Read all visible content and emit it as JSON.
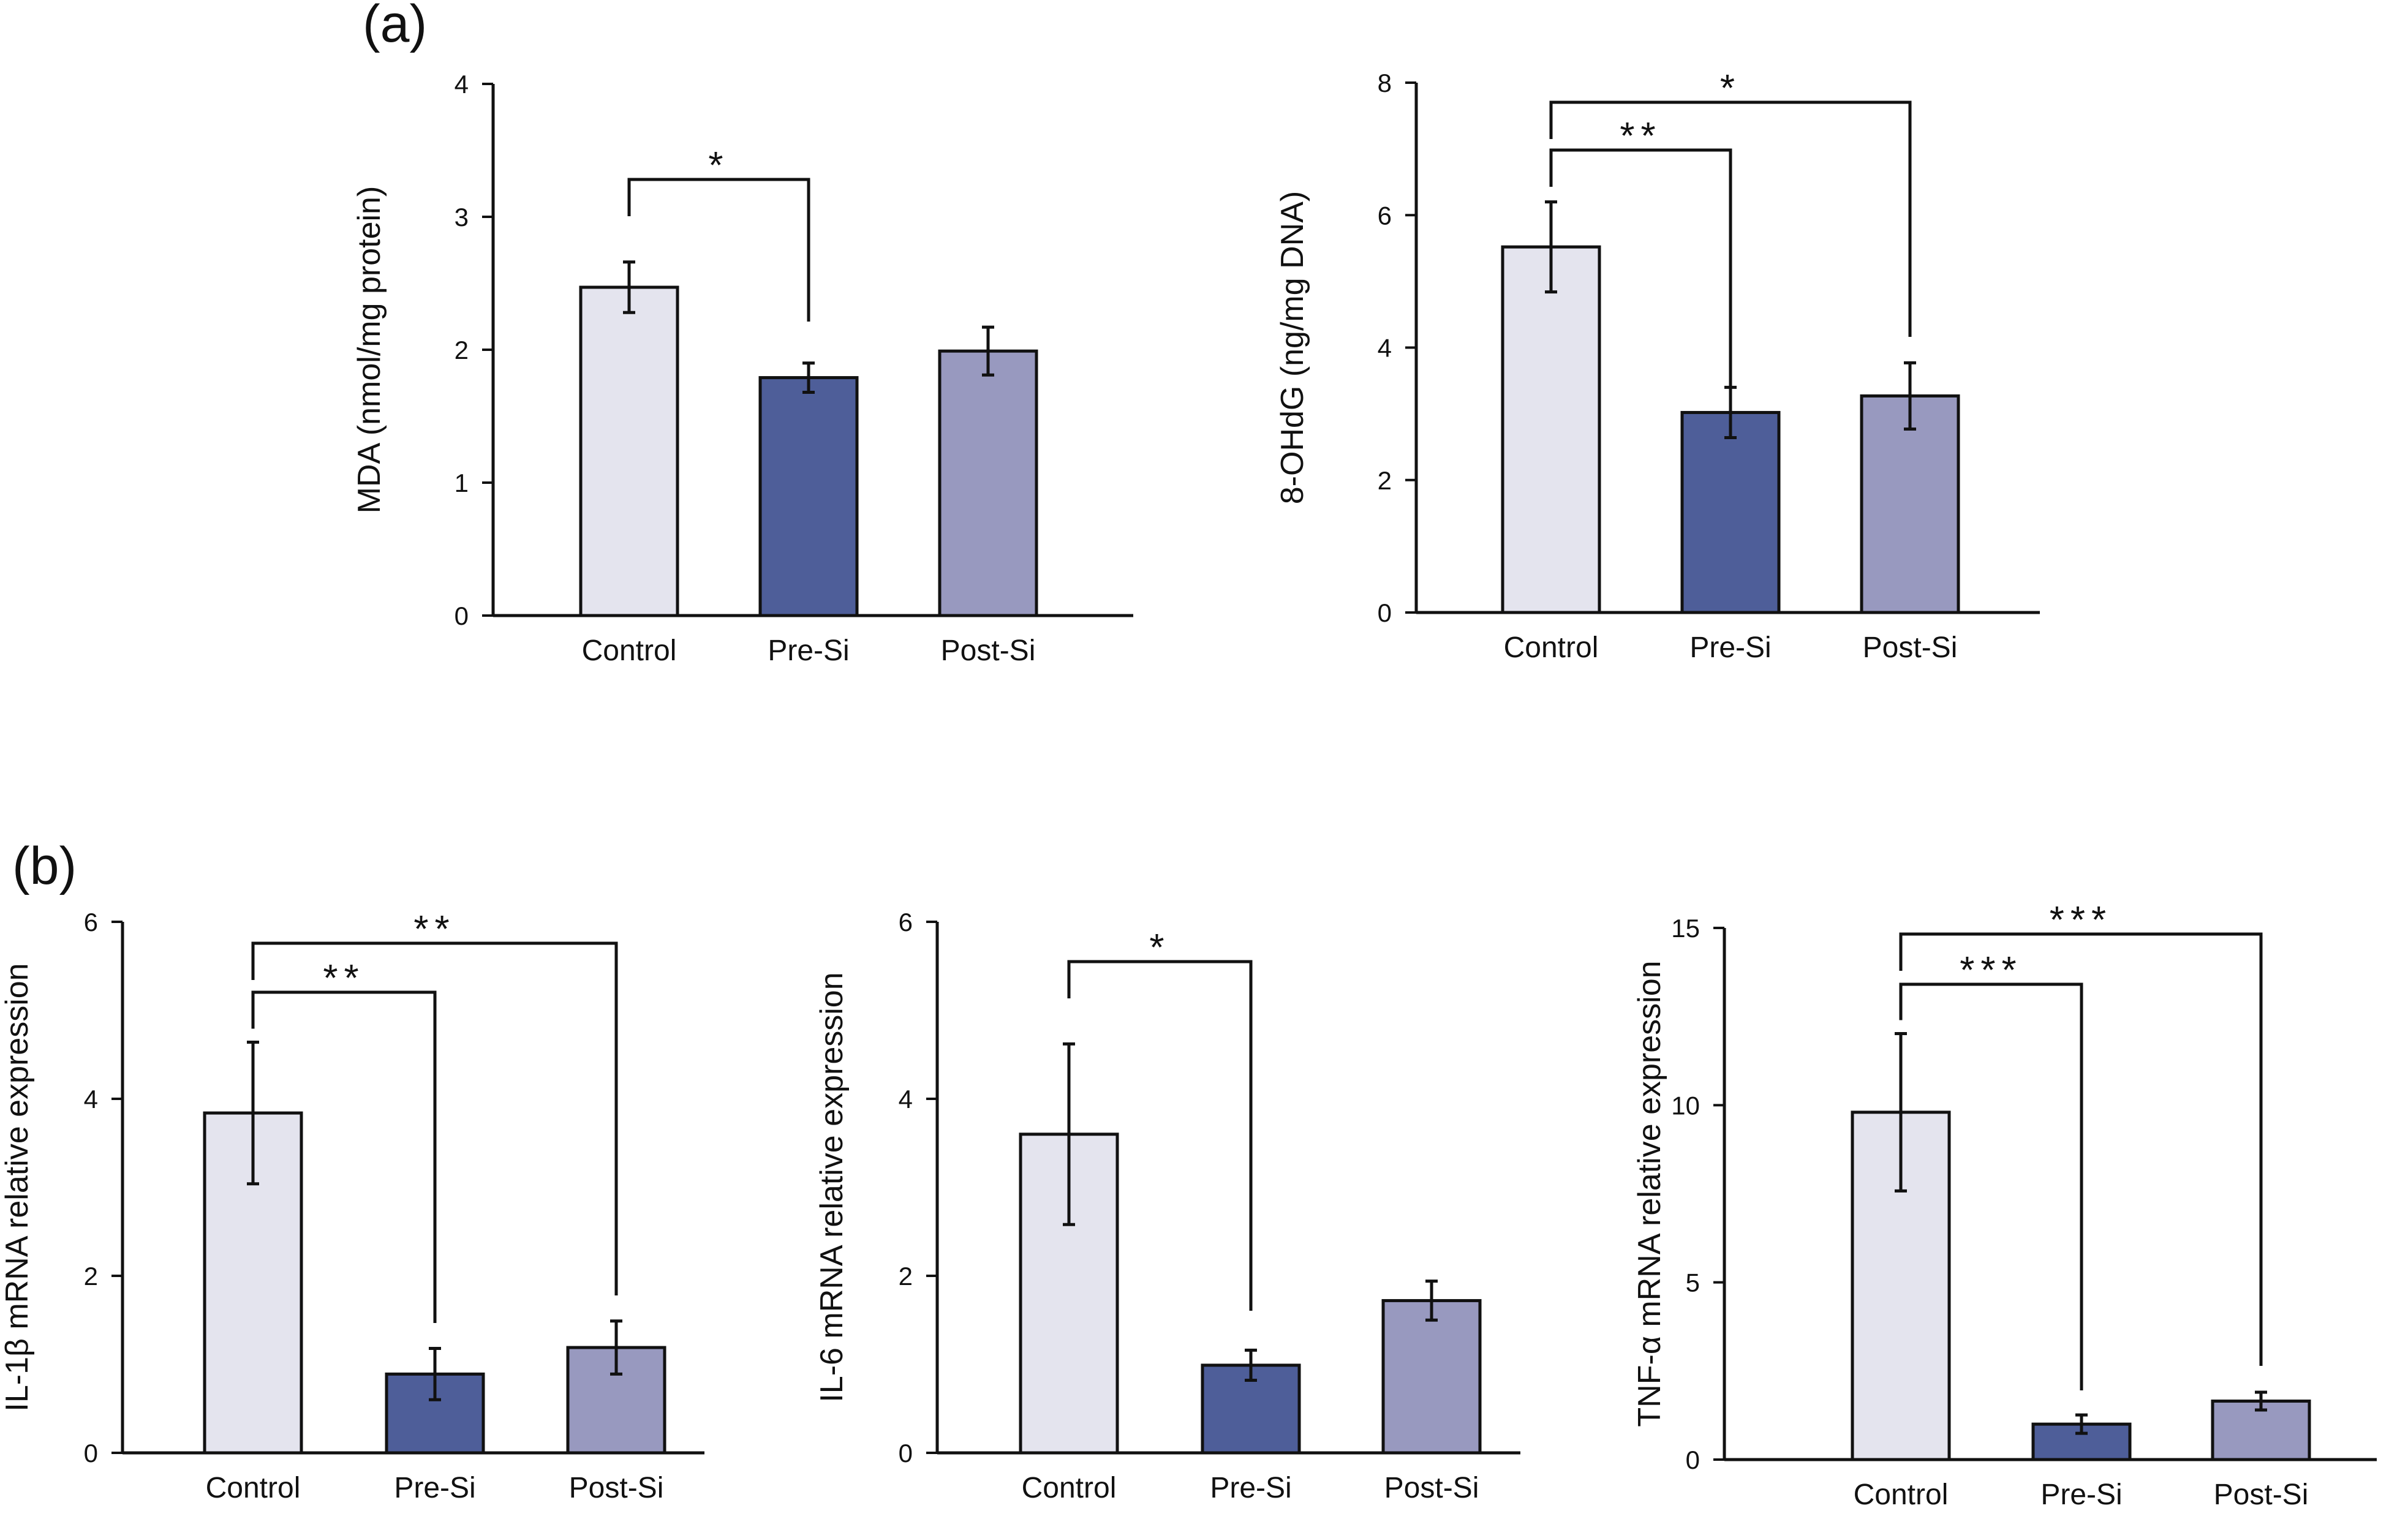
{
  "panels": [
    {
      "letter": "(a)"
    },
    {
      "letter": "(b)"
    }
  ],
  "colors": {
    "Control": "#e4e4ee",
    "Pre-Si": "#4e5e99",
    "Post-Si": "#9899bf",
    "outline": "#111111"
  },
  "chart_data": [
    {
      "type": "bar",
      "panel": "(a)",
      "categories": [
        "Control",
        "Pre-Si",
        "Post-Si"
      ],
      "values": [
        2.47,
        1.79,
        1.99
      ],
      "errors": [
        0.19,
        0.11,
        0.18
      ],
      "ylabel": "MDA (nmol/mg protein)",
      "ylim": [
        0,
        4
      ],
      "yticks": [
        0,
        1,
        2,
        3,
        4
      ],
      "significance": [
        {
          "from": "Control",
          "to": "Pre-Si",
          "label": "*"
        }
      ]
    },
    {
      "type": "bar",
      "panel": "(a)",
      "categories": [
        "Control",
        "Pre-Si",
        "Post-Si"
      ],
      "values": [
        5.52,
        3.02,
        3.27
      ],
      "errors": [
        0.68,
        0.38,
        0.5
      ],
      "ylabel": "8-OHdG (ng/mg DNA)",
      "ylim": [
        0,
        8
      ],
      "yticks": [
        0,
        2,
        4,
        6,
        8
      ],
      "significance": [
        {
          "from": "Control",
          "to": "Pre-Si",
          "label": "**"
        },
        {
          "from": "Control",
          "to": "Post-Si",
          "label": "*"
        }
      ]
    },
    {
      "type": "bar",
      "panel": "(b)",
      "categories": [
        "Control",
        "Pre-Si",
        "Post-Si"
      ],
      "values": [
        3.84,
        0.89,
        1.19
      ],
      "errors": [
        0.8,
        0.29,
        0.3
      ],
      "ylabel": "IL-1β mRNA relative expression",
      "ylim": [
        0,
        6
      ],
      "yticks": [
        0,
        2,
        4,
        6
      ],
      "significance": [
        {
          "from": "Control",
          "to": "Pre-Si",
          "label": "**"
        },
        {
          "from": "Control",
          "to": "Post-Si",
          "label": "**"
        }
      ]
    },
    {
      "type": "bar",
      "panel": "(b)",
      "categories": [
        "Control",
        "Pre-Si",
        "Post-Si"
      ],
      "values": [
        3.6,
        0.99,
        1.72
      ],
      "errors": [
        1.02,
        0.17,
        0.22
      ],
      "ylabel": "IL-6 mRNA relative expression",
      "ylim": [
        0,
        6
      ],
      "yticks": [
        0,
        2,
        4,
        6
      ],
      "significance": [
        {
          "from": "Control",
          "to": "Pre-Si",
          "label": "*"
        }
      ]
    },
    {
      "type": "bar",
      "panel": "(b)",
      "categories": [
        "Control",
        "Pre-Si",
        "Post-Si"
      ],
      "values": [
        9.8,
        1.0,
        1.65
      ],
      "errors": [
        2.22,
        0.26,
        0.25
      ],
      "ylabel": "TNF-α mRNA relative expression",
      "ylim": [
        0,
        15
      ],
      "yticks": [
        0,
        5,
        10,
        15
      ],
      "significance": [
        {
          "from": "Control",
          "to": "Pre-Si",
          "label": "***"
        },
        {
          "from": "Control",
          "to": "Post-Si",
          "label": "***"
        }
      ]
    }
  ]
}
